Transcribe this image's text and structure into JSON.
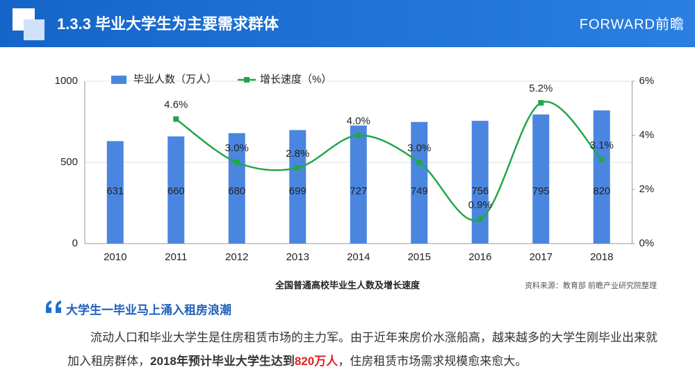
{
  "header": {
    "title": "1.3.3 毕业大学生为主要需求群体",
    "brand": "FORWARD前瞻"
  },
  "chart_data": {
    "type": "combo",
    "categories": [
      "2010",
      "2011",
      "2012",
      "2013",
      "2014",
      "2015",
      "2016",
      "2017",
      "2018"
    ],
    "series": [
      {
        "name": "毕业人数（万人）",
        "color": "#4a86e0",
        "values": [
          631,
          660,
          680,
          699,
          727,
          749,
          756,
          795,
          820
        ]
      },
      {
        "name": "增长速度（%）",
        "color": "#22a64a",
        "axis": "y2",
        "smooth": true,
        "values": [
          null,
          4.6,
          3.0,
          2.8,
          4.0,
          3.0,
          0.9,
          5.2,
          3.1
        ],
        "value_labels": [
          null,
          "4.6%",
          "3.0%",
          "2.8%",
          "4.0%",
          "3.0%",
          "0.9%",
          "5.2%",
          "3.1%"
        ]
      }
    ],
    "ylim": [
      0,
      1000
    ],
    "yticks": [
      0,
      500,
      1000
    ],
    "y2lim": [
      0,
      6
    ],
    "y2ticks": [
      {
        "value": 0,
        "label": "0%"
      },
      {
        "value": 2,
        "label": "2%"
      },
      {
        "value": 4,
        "label": "4%"
      },
      {
        "value": 6,
        "label": "6%"
      }
    ],
    "grid": true,
    "legend": "top",
    "caption": "全国普通高校毕业生人数及增长速度",
    "source": "资料来源：教育部 前瞻产业研究院整理"
  },
  "text": {
    "heading": "大学生一毕业马上涌入租房浪潮",
    "paragraph": [
      "流动人口和毕业大学生是住房租赁市场的主力军。由于近年来房价水涨船高，越来越多的大学生刚毕业出来就加入租房群体，",
      "2018年预计毕业大学生达到",
      "820万人",
      "，住房租赁市场需求规模愈来愈大。"
    ]
  }
}
